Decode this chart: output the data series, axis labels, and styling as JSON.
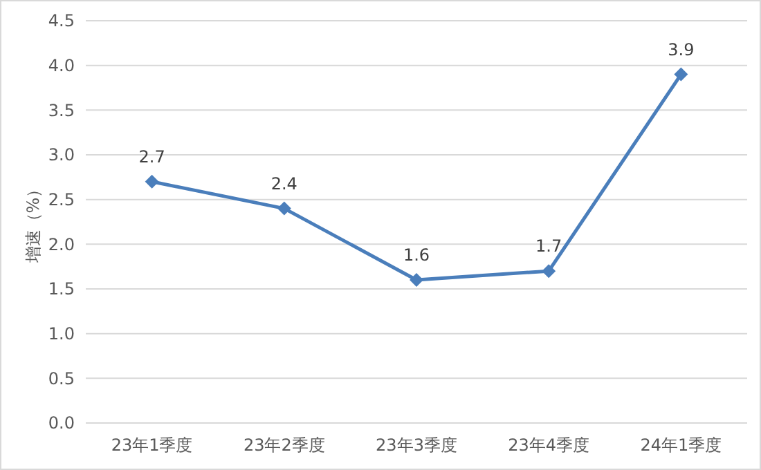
{
  "chart_data": {
    "type": "line",
    "ylabel": "增速（%）",
    "categories": [
      "23年1季度",
      "23年2季度",
      "23年3季度",
      "23年4季度",
      "24年1季度"
    ],
    "series": [
      {
        "color": "#4a7ebb",
        "values": [
          2.7,
          2.4,
          1.6,
          1.7,
          3.9
        ]
      }
    ],
    "ylim": [
      0,
      4.5
    ],
    "yticks": [
      "0.0",
      "0.5",
      "1.0",
      "1.5",
      "2.0",
      "2.5",
      "3.0",
      "3.5",
      "4.0",
      "4.5"
    ],
    "grid": "y",
    "marker": "diamond",
    "line_style": "solid",
    "data_labels": true
  }
}
